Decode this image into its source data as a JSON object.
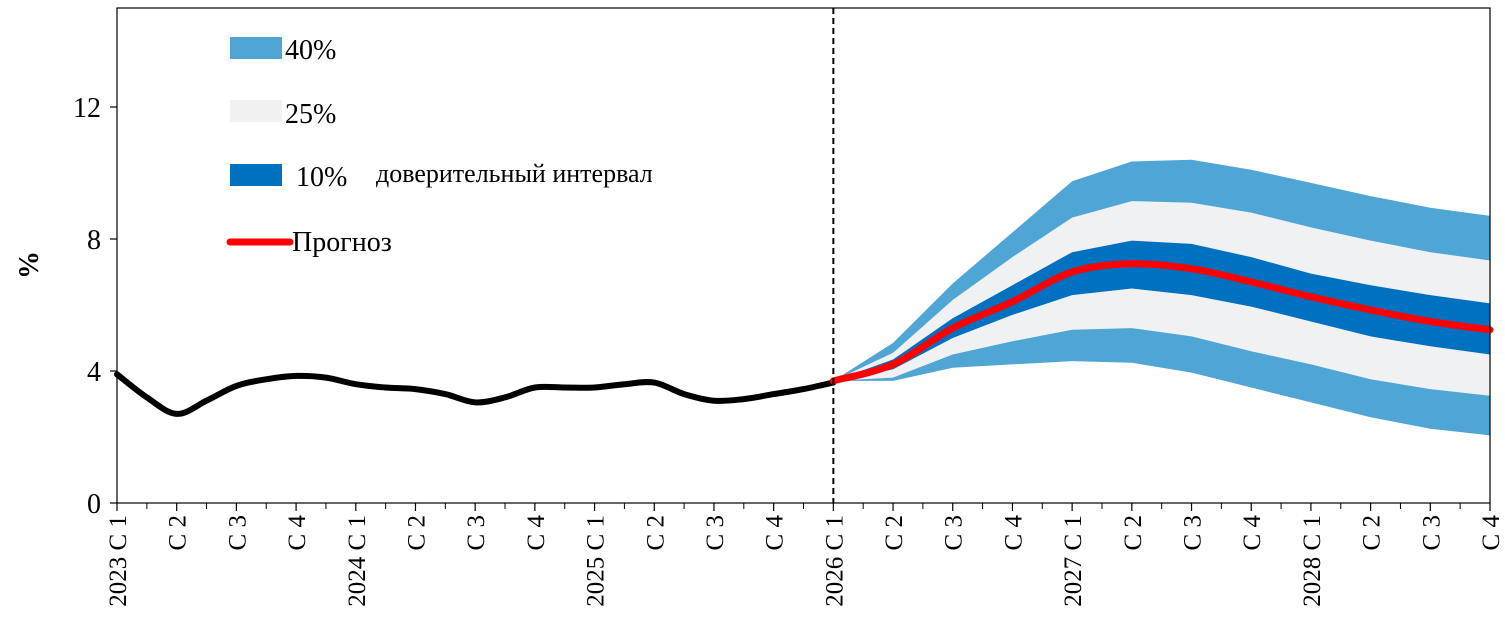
{
  "chart_data": {
    "type": "area",
    "ylabel": "%",
    "xlabel": "",
    "ylim": [
      0,
      15
    ],
    "yticks": [
      0,
      4,
      8,
      12
    ],
    "x_categories": [
      "2023 С 1",
      "С 2",
      "С 3",
      "С 4",
      "2024 С 1",
      "С 2",
      "С 3",
      "С 4",
      "2025 С 1",
      "С 2",
      "С 3",
      "С 4",
      "2026 С 1",
      "С 2",
      "С 3",
      "С 4",
      "2027 С 1",
      "С 2",
      "С 3",
      "С 4",
      "2028 С 1",
      "С 2",
      "С 3",
      "С 4"
    ],
    "forecast_start_index": 12,
    "history": {
      "name": "",
      "color": "#000000",
      "x": [
        0,
        0.5,
        1,
        1.5,
        2,
        2.5,
        3,
        3.5,
        4,
        4.5,
        5,
        5.5,
        6,
        6.5,
        7,
        7.5,
        8,
        8.5,
        9,
        9.5,
        10,
        10.5,
        11,
        11.5,
        12
      ],
      "values": [
        3.9,
        3.2,
        2.7,
        3.1,
        3.55,
        3.75,
        3.85,
        3.8,
        3.6,
        3.5,
        3.45,
        3.3,
        3.05,
        3.2,
        3.5,
        3.5,
        3.5,
        3.6,
        3.65,
        3.3,
        3.1,
        3.15,
        3.3,
        3.45,
        3.65
      ]
    },
    "forecast": {
      "name": "Прогноз",
      "color": "#ff0000",
      "x": [
        12,
        13,
        14,
        15,
        16,
        17,
        18,
        19,
        20,
        21,
        22,
        23
      ],
      "values": [
        3.7,
        4.2,
        5.3,
        6.1,
        7.0,
        7.25,
        7.1,
        6.7,
        6.25,
        5.85,
        5.5,
        5.25
      ]
    },
    "bands": [
      {
        "name": "40%",
        "color": "#4fa6d5",
        "x": [
          12,
          13,
          14,
          15,
          16,
          17,
          18,
          19,
          20,
          21,
          22,
          23
        ],
        "lower": [
          3.7,
          3.7,
          4.1,
          4.2,
          4.3,
          4.25,
          3.95,
          3.5,
          3.05,
          2.6,
          2.25,
          2.05
        ],
        "upper": [
          3.7,
          4.85,
          6.65,
          8.2,
          9.75,
          10.35,
          10.4,
          10.1,
          9.7,
          9.3,
          8.95,
          8.7
        ]
      },
      {
        "name": "25%",
        "color": "#f0f1f3",
        "x": [
          12,
          13,
          14,
          15,
          16,
          17,
          18,
          19,
          20,
          21,
          22,
          23
        ],
        "lower": [
          3.7,
          3.8,
          4.5,
          4.9,
          5.25,
          5.3,
          5.05,
          4.6,
          4.2,
          3.75,
          3.45,
          3.25
        ],
        "upper": [
          3.7,
          4.55,
          6.15,
          7.45,
          8.65,
          9.15,
          9.1,
          8.8,
          8.35,
          7.95,
          7.6,
          7.35
        ]
      },
      {
        "name": "10%",
        "color": "#0070c0",
        "x": [
          12,
          13,
          14,
          15,
          16,
          17,
          18,
          19,
          20,
          21,
          22,
          23
        ],
        "lower": [
          3.7,
          4.05,
          5.0,
          5.7,
          6.3,
          6.5,
          6.3,
          5.95,
          5.5,
          5.05,
          4.75,
          4.5
        ],
        "upper": [
          3.7,
          4.35,
          5.6,
          6.6,
          7.6,
          7.95,
          7.85,
          7.45,
          6.95,
          6.6,
          6.3,
          6.05
        ]
      }
    ],
    "legend": {
      "items": [
        "40%",
        "25%",
        "10%",
        "Прогноз"
      ],
      "note": "доверительный интервал",
      "placement": "top-left"
    },
    "grid": false
  }
}
